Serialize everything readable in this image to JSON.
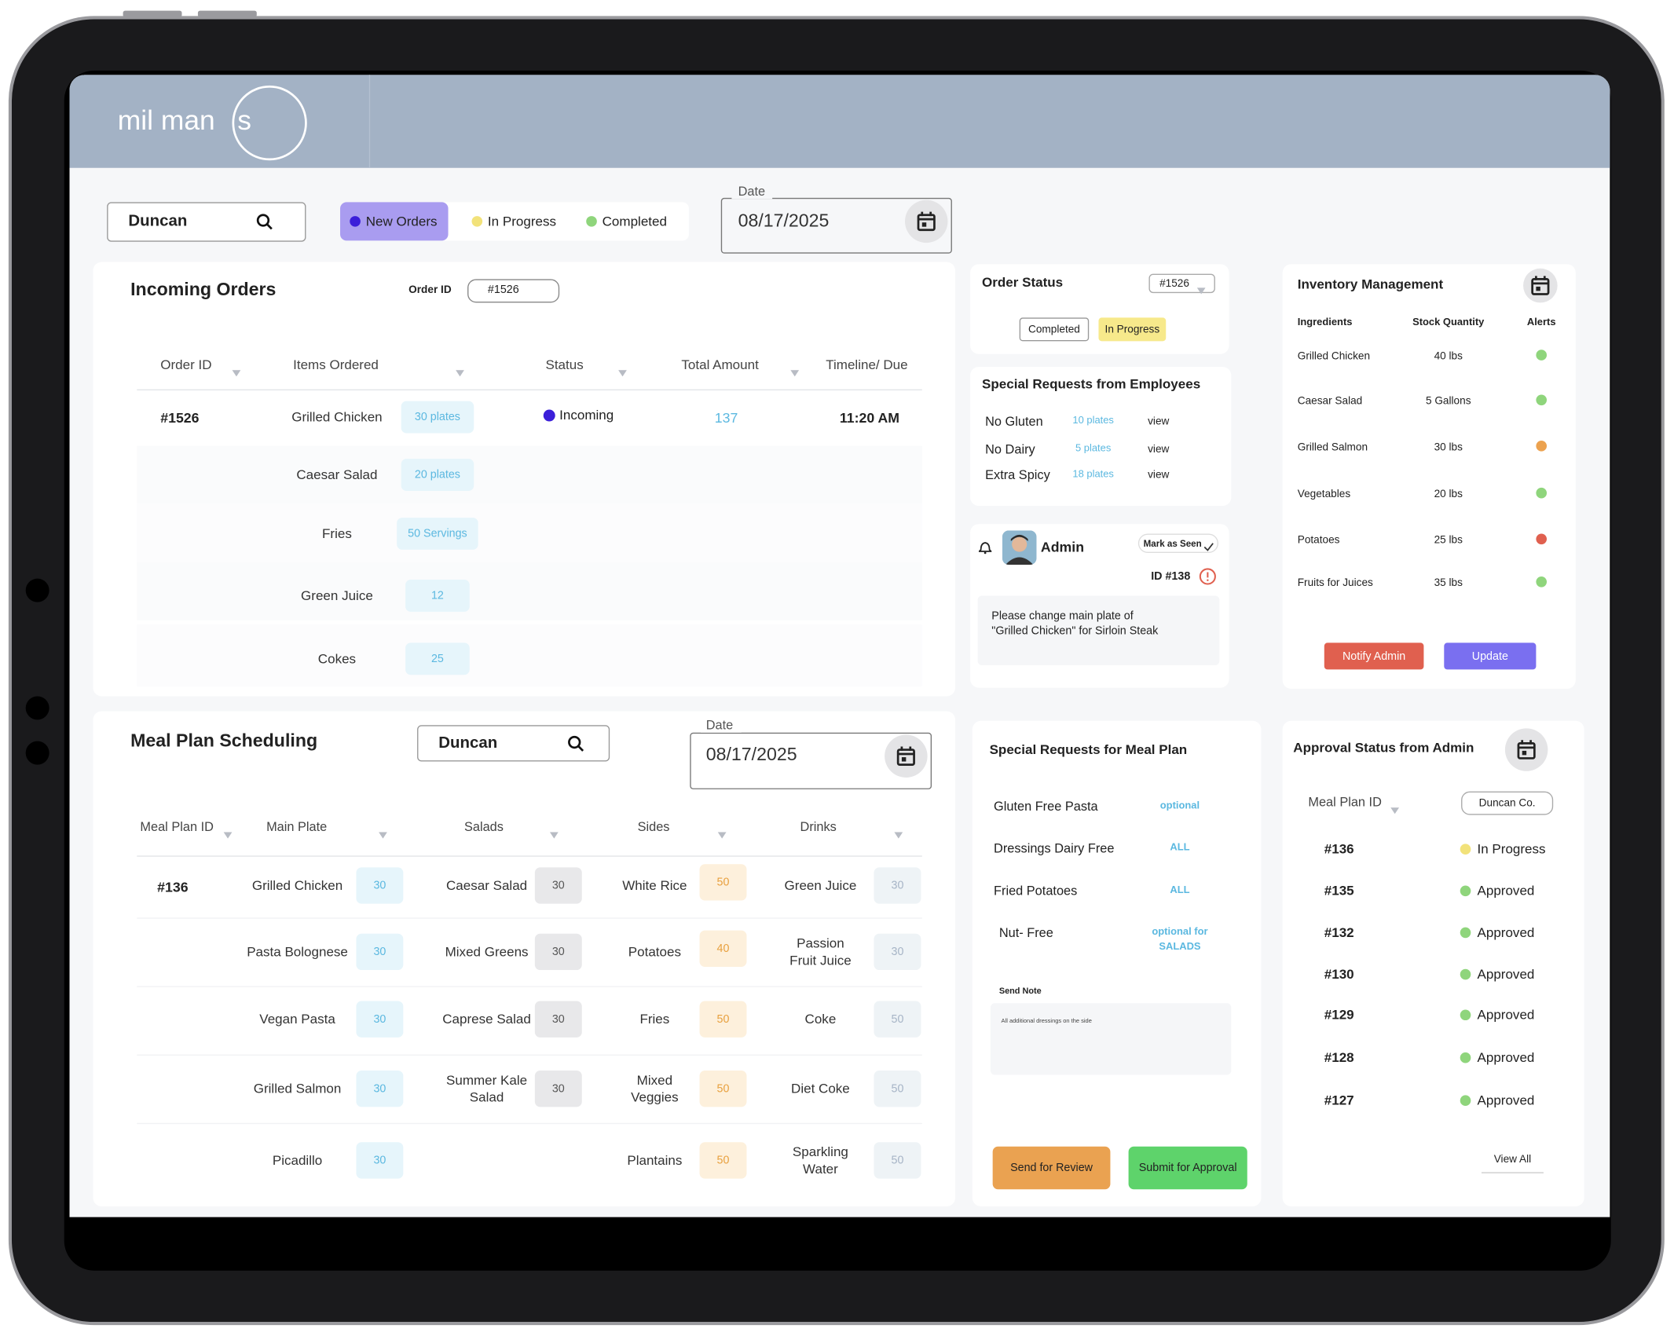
{
  "header": {
    "logo": "mil man",
    "logo_circled": "s"
  },
  "toolbar": {
    "search": "Duncan",
    "filters": [
      {
        "label": "New Orders",
        "color": "#3b1fd9"
      },
      {
        "label": "In Progress",
        "color": "#f2e27a"
      },
      {
        "label": "Completed",
        "color": "#8fd57c"
      }
    ],
    "date_label": "Date",
    "date": "08/17/2025"
  },
  "incoming_orders": {
    "title": "Incoming Orders",
    "order_id_label": "Order ID",
    "order_id": "#1526",
    "columns": [
      "Order ID",
      "Items Ordered",
      "Status",
      "Total Amount",
      "Timeline/ Due"
    ],
    "order": {
      "id": "#1526",
      "status": "Incoming",
      "total": 137,
      "due": "11:20 AM",
      "items": [
        {
          "name": "Grilled Chicken",
          "qty": "30 plates"
        },
        {
          "name": "Caesar Salad",
          "qty": "20 plates"
        },
        {
          "name": "Fries",
          "qty": "50 Servings"
        },
        {
          "name": "Green Juice",
          "qty": 12
        },
        {
          "name": "Cokes",
          "qty": 25
        }
      ]
    }
  },
  "order_status": {
    "title": "Order Status",
    "id": "#1526",
    "buttons": [
      "Completed",
      "In Progress"
    ]
  },
  "special_requests": {
    "title": "Special Requests from Employees",
    "rows": [
      {
        "name": "No Gluten",
        "qty": "10 plates",
        "action": "view"
      },
      {
        "name": "No Dairy",
        "qty": "5 plates",
        "action": "view"
      },
      {
        "name": "Extra Spicy",
        "qty": "18 plates",
        "action": "view"
      }
    ]
  },
  "notification": {
    "sender": "Admin",
    "action": "Mark as Seen",
    "id": "ID #138",
    "message": [
      "Please change main plate of",
      "\"Grilled Chicken\" for Sirloin Steak"
    ]
  },
  "inventory": {
    "title": "Inventory Management",
    "columns": [
      "Ingredients",
      "Stock Quantity",
      "Alerts"
    ],
    "rows": [
      {
        "name": "Grilled Chicken",
        "qty": "40 lbs",
        "alert": "#8fd57c"
      },
      {
        "name": "Caesar Salad",
        "qty": "5 Gallons",
        "alert": "#8fd57c"
      },
      {
        "name": "Grilled Salmon",
        "qty": "30 lbs",
        "alert": "#eca24f"
      },
      {
        "name": "Vegetables",
        "qty": "20 lbs",
        "alert": "#8fd57c"
      },
      {
        "name": "Potatoes",
        "qty": "25 lbs",
        "alert": "#e0604f"
      },
      {
        "name": "Fruits for Juices",
        "qty": "35 lbs",
        "alert": "#8fd57c"
      }
    ],
    "buttons": [
      "Notify Admin",
      "Update"
    ]
  },
  "meal_plan": {
    "title": "Meal Plan Scheduling",
    "search": "Duncan",
    "date_label": "Date",
    "date": "08/17/2025",
    "columns": [
      "Meal Plan ID",
      "Main Plate",
      "Salads",
      "Sides",
      "Drinks"
    ],
    "id": "#136",
    "rows": [
      {
        "main": {
          "name": "Grilled Chicken",
          "qty": 30
        },
        "salad": {
          "name": "Caesar Salad",
          "qty": 30
        },
        "side": {
          "name": "White Rice",
          "qty": 50
        },
        "drink": {
          "name": "Green Juice",
          "qty": 30
        }
      },
      {
        "main": {
          "name": "Pasta Bolognese",
          "qty": 30
        },
        "salad": {
          "name": "Mixed Greens",
          "qty": 30
        },
        "side": {
          "name": "Potatoes",
          "qty": 40
        },
        "drink": {
          "name": "Passion Fruit Juice",
          "qty": 30
        }
      },
      {
        "main": {
          "name": "Vegan Pasta",
          "qty": 30
        },
        "salad": {
          "name": "Caprese Salad",
          "qty": 30
        },
        "side": {
          "name": "Fries",
          "qty": 50
        },
        "drink": {
          "name": "Coke",
          "qty": 50
        }
      },
      {
        "main": {
          "name": "Grilled Salmon",
          "qty": 30
        },
        "salad": {
          "name": "Summer Kale Salad",
          "qty": 30
        },
        "side": {
          "name": "Mixed Veggies",
          "qty": 50
        },
        "drink": {
          "name": "Diet Coke",
          "qty": 50
        }
      },
      {
        "main": {
          "name": "Picadillo",
          "qty": 30
        },
        "salad": null,
        "side": {
          "name": "Plantains",
          "qty": 50
        },
        "drink": {
          "name": "Sparkling Water",
          "qty": 50
        }
      }
    ]
  },
  "meal_requests": {
    "title": "Special Requests for Meal Plan",
    "rows": [
      {
        "name": "Gluten Free Pasta",
        "note": "optional"
      },
      {
        "name": "Dressings Dairy Free",
        "note": "ALL"
      },
      {
        "name": "Fried Potatoes",
        "note": "ALL"
      },
      {
        "name": "Nut- Free",
        "note": "optional for SALADS"
      }
    ],
    "note_label": "Send Note",
    "note": "All additional dressings on the side",
    "buttons": [
      "Send for Review",
      "Submit for Approval"
    ]
  },
  "approval": {
    "title": "Approval Status from Admin",
    "filter_label": "Meal Plan ID",
    "filter": "Duncan Co.",
    "rows": [
      {
        "id": "#136",
        "status": "In Progress",
        "color": "#f2e27a"
      },
      {
        "id": "#135",
        "status": "Approved",
        "color": "#8fd57c"
      },
      {
        "id": "#132",
        "status": "Approved",
        "color": "#8fd57c"
      },
      {
        "id": "#130",
        "status": "Approved",
        "color": "#8fd57c"
      },
      {
        "id": "#129",
        "status": "Approved",
        "color": "#8fd57c"
      },
      {
        "id": "#128",
        "status": "Approved",
        "color": "#8fd57c"
      },
      {
        "id": "#127",
        "status": "Approved",
        "color": "#8fd57c"
      }
    ],
    "link": "View All"
  }
}
